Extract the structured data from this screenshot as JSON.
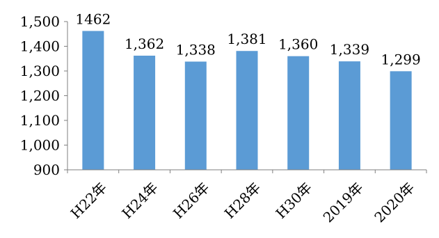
{
  "chart_data": {
    "type": "bar",
    "categories": [
      "H22年",
      "H24年",
      "H26年",
      "H28年",
      "H30年",
      "2019年",
      "2020年"
    ],
    "values": [
      1462,
      1362,
      1338,
      1381,
      1360,
      1339,
      1299
    ],
    "data_labels": [
      "1462",
      "1,362",
      "1,338",
      "1,381",
      "1,360",
      "1,339",
      "1,299"
    ],
    "title": "",
    "xlabel": "",
    "ylabel": "",
    "ylim": [
      900,
      1500
    ],
    "yticks": [
      900,
      1000,
      1100,
      1200,
      1300,
      1400,
      1500
    ],
    "ytick_labels": [
      "900",
      "1,000",
      "1,100",
      "1,200",
      "1,300",
      "1,400",
      "1,500"
    ],
    "grid": false,
    "legend": "none",
    "bar_color": "#5b9bd5"
  }
}
